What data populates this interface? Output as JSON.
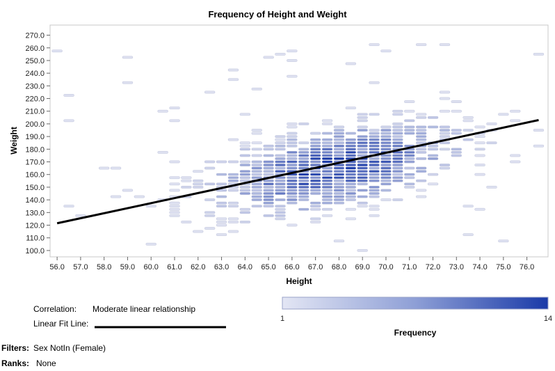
{
  "chart_data": {
    "type": "heatmap",
    "title": "Frequency of Height and Weight",
    "xlabel": "Height",
    "ylabel": "Weight",
    "xlim": [
      55.7,
      76.9
    ],
    "ylim": [
      95,
      278
    ],
    "x_ticks": [
      "56.0",
      "57.0",
      "58.0",
      "59.0",
      "60.0",
      "61.0",
      "62.0",
      "63.0",
      "64.0",
      "65.0",
      "66.0",
      "67.0",
      "68.0",
      "69.0",
      "70.0",
      "71.0",
      "72.0",
      "73.0",
      "74.0",
      "75.0",
      "76.0"
    ],
    "y_ticks": [
      "100.0",
      "110.0",
      "120.0",
      "130.0",
      "140.0",
      "150.0",
      "160.0",
      "170.0",
      "180.0",
      "190.0",
      "200.0",
      "210.0",
      "220.0",
      "230.0",
      "240.0",
      "250.0",
      "260.0",
      "270.0"
    ],
    "bin_width": 0.5,
    "bin_height": 2.5,
    "frequency_range": [
      1,
      14
    ],
    "color_low": "#dde0f0",
    "color_high": "#1a3aa8",
    "fit_line": {
      "x": [
        56.0,
        76.5
      ],
      "y": [
        121.5,
        203.0
      ],
      "color": "#000000"
    },
    "cells_summary": "Approximately symmetric bivariate cloud of binned Height/Weight observations centred near Height 68, Weight 165, with density peaking around Height 66-70, Weight 150-190.",
    "density_model": {
      "center_x": 67.8,
      "center_y": 165.5,
      "sd_x": 3.2,
      "sd_y": 22.0,
      "corr": 0.5,
      "peak": 14
    },
    "grid": false,
    "legend_position": "bottom"
  },
  "legend": {
    "correlation_key": "Correlation:",
    "correlation_value": "Moderate linear relationship",
    "fit_line_key": "Linear Fit Line:",
    "gradient_min": "1",
    "gradient_max": "14",
    "gradient_title": "Frequency"
  },
  "footer": {
    "filters_key": "Filters:",
    "filters_value": "Sex NotIn (Female)",
    "ranks_key": "Ranks:",
    "ranks_value": "None"
  }
}
